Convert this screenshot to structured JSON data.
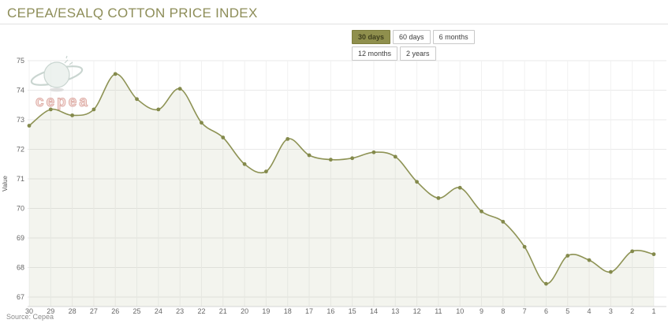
{
  "header": {
    "title": "CEPEA/ESALQ COTTON PRICE INDEX"
  },
  "range_selector": {
    "buttons": [
      {
        "label": "30 days",
        "active": true
      },
      {
        "label": "60 days",
        "active": false
      },
      {
        "label": "6 months",
        "active": false
      },
      {
        "label": "12 months",
        "active": false
      },
      {
        "label": "2 years",
        "active": false
      }
    ]
  },
  "watermark": {
    "logo_text": "cepea"
  },
  "footer": {
    "source": "Source: Cepea"
  },
  "chart_data": {
    "type": "area",
    "title": "CEPEA/ESALQ COTTON PRICE INDEX",
    "xlabel": "",
    "ylabel": "Value",
    "x_labels": [
      "30",
      "29",
      "28",
      "27",
      "26",
      "25",
      "24",
      "23",
      "22",
      "21",
      "20",
      "19",
      "18",
      "17",
      "16",
      "15",
      "14",
      "13",
      "12",
      "11",
      "10",
      "9",
      "8",
      "7",
      "6",
      "5",
      "4",
      "3",
      "2",
      "1"
    ],
    "values": [
      72.8,
      73.35,
      73.15,
      73.35,
      74.55,
      73.7,
      73.35,
      74.05,
      72.9,
      72.4,
      71.5,
      71.25,
      72.35,
      71.8,
      71.65,
      71.7,
      71.9,
      71.75,
      70.9,
      70.35,
      70.7,
      69.9,
      69.55,
      68.7,
      67.45,
      68.4,
      68.25,
      67.85,
      68.55,
      68.45
    ],
    "yticks": [
      75,
      74,
      73,
      72,
      71,
      70,
      69,
      68,
      67
    ],
    "ylim": [
      66.7,
      75
    ],
    "grid": true,
    "legend": "none",
    "colors": {
      "line": "#8e9355",
      "marker": "#848a4c",
      "fill": "rgba(142,147,85,0.10)",
      "grid_h": "#e9e9e9",
      "grid_v": "#f1f1f1",
      "axis_line": "#d6d6d6",
      "tick_text": "#666666",
      "title_text": "#8d8d58",
      "watermark_globe": "#e9f0ec",
      "watermark_globe_stroke": "#bccbc5",
      "watermark_text": "#d4938b"
    }
  }
}
